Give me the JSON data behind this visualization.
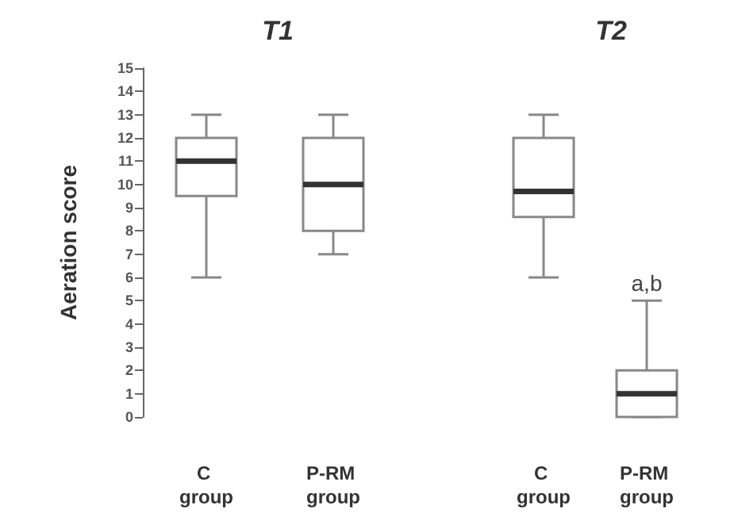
{
  "chart_data": [
    {
      "type": "box",
      "title": "T1",
      "ylabel": "Aeration score",
      "categories": [
        "C group",
        "P-RM group"
      ],
      "color": "#888888",
      "boxes": [
        {
          "low": 6,
          "q1": 9.5,
          "median": 11,
          "q3": 12,
          "high": 13
        },
        {
          "low": 7,
          "q1": 8,
          "median": 10,
          "q3": 12,
          "high": 13
        }
      ],
      "ylim": [
        0,
        15
      ],
      "yticks": [
        0,
        1,
        2,
        3,
        4,
        5,
        6,
        7,
        8,
        9,
        10,
        11,
        12,
        13,
        14,
        15
      ]
    },
    {
      "type": "box",
      "title": "T2",
      "categories": [
        "C group",
        "P-RM group"
      ],
      "color": "#888888",
      "boxes": [
        {
          "low": 6,
          "q1": 8.6,
          "median": 9.7,
          "q3": 12,
          "high": 13
        },
        {
          "low": 0,
          "q1": 0,
          "median": 1,
          "q3": 2,
          "high": 5
        }
      ],
      "ylim": [
        0,
        15
      ],
      "tick_labels": "x",
      "annotations": [
        "a,b"
      ]
    }
  ]
}
